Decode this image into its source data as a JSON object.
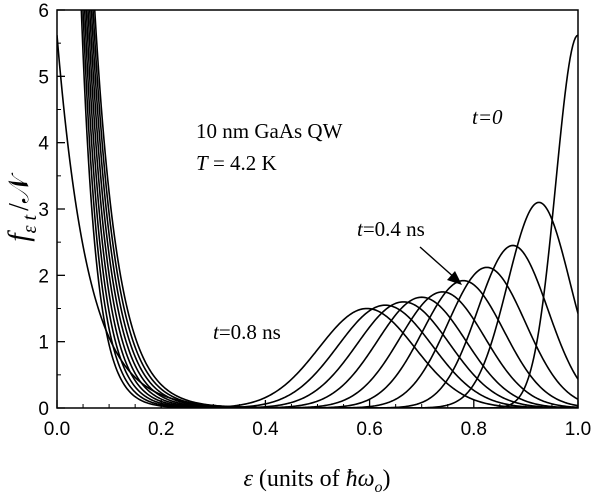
{
  "chart_data": {
    "type": "line",
    "xlabel": {
      "symbol": "ε",
      "text": "(units of ",
      "hbar_omega": "ħω",
      "subscript": "o",
      "close": ")"
    },
    "ylabel": {
      "f": "f",
      "subscript": "ε t",
      "slash": "/",
      "N": "𝒩"
    },
    "xlim": [
      0.0,
      1.0
    ],
    "ylim": [
      0,
      6
    ],
    "x_ticks": [
      "0.0",
      "0.2",
      "0.4",
      "0.6",
      "0.8",
      "1.0"
    ],
    "y_ticks": [
      "0",
      "1",
      "2",
      "3",
      "4",
      "5",
      "6"
    ],
    "annotations": {
      "sample": "10 nm GaAs QW",
      "temp_symbol": "T",
      "temp_value": " = 4.2 K",
      "t_symbol": "t",
      "t0": "=0",
      "t04": "=0.4 ns",
      "t08": "=0.8 ns"
    },
    "series": [
      {
        "peak_x": 1.0,
        "peak_y": 5.62,
        "width": 0.06,
        "low_amp": 5.62,
        "low_decay": 0.06
      },
      {
        "peak_x": 0.925,
        "peak_y": 3.1,
        "width": 0.085,
        "low_amp": 30,
        "low_decay": 0.045
      },
      {
        "peak_x": 0.875,
        "peak_y": 2.45,
        "width": 0.095,
        "low_amp": 30,
        "low_decay": 0.043
      },
      {
        "peak_x": 0.825,
        "peak_y": 2.12,
        "width": 0.105,
        "low_amp": 30,
        "low_decay": 0.041
      },
      {
        "peak_x": 0.78,
        "peak_y": 1.92,
        "width": 0.11,
        "low_amp": 30,
        "low_decay": 0.039
      },
      {
        "peak_x": 0.74,
        "peak_y": 1.75,
        "width": 0.115,
        "low_amp": 30,
        "low_decay": 0.037
      },
      {
        "peak_x": 0.7,
        "peak_y": 1.67,
        "width": 0.12,
        "low_amp": 30,
        "low_decay": 0.035
      },
      {
        "peak_x": 0.665,
        "peak_y": 1.6,
        "width": 0.125,
        "low_amp": 30,
        "low_decay": 0.033
      },
      {
        "peak_x": 0.63,
        "peak_y": 1.55,
        "width": 0.128,
        "low_amp": 30,
        "low_decay": 0.031
      },
      {
        "peak_x": 0.595,
        "peak_y": 1.5,
        "width": 0.13,
        "low_amp": 30,
        "low_decay": 0.029
      }
    ]
  }
}
